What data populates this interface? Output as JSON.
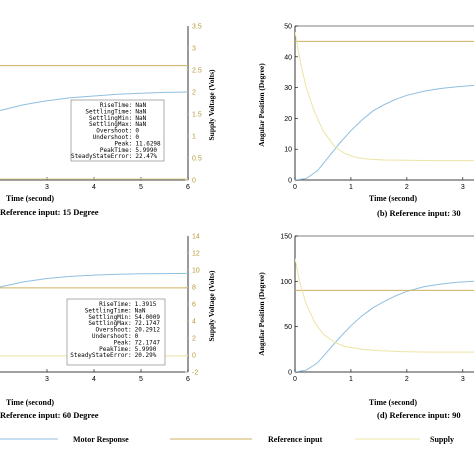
{
  "colors": {
    "motor": "#8fbfe0",
    "reference": "#cfb060",
    "supply": "#ece4a4",
    "axis": "#000000",
    "grid": "#dddddd"
  },
  "legend": {
    "items": [
      {
        "label": "Motor Response",
        "color": "#8fbfe0"
      },
      {
        "label": "Reference input",
        "color": "#cfb060"
      },
      {
        "label": "Supply",
        "color": "#ece4a4"
      }
    ]
  },
  "chart_data": [
    {
      "id": "a",
      "type": "line",
      "caption": "Reference input: 15 Degree",
      "xlabel": "Time (second)",
      "ylabel": "Supply Voltage (Volts)",
      "xlim": [
        2,
        6
      ],
      "ylim": [
        0,
        3.5
      ],
      "xticks": [
        3,
        4,
        5,
        6
      ],
      "yticks": [
        0,
        0.5,
        1,
        1.5,
        2,
        2.5,
        3,
        3.5
      ],
      "yticks_side": "right",
      "series": [
        {
          "name": "Motor Response",
          "x": [
            2,
            2.5,
            3,
            3.5,
            4,
            4.5,
            5,
            5.5,
            6
          ],
          "y": [
            1.58,
            1.71,
            1.8,
            1.87,
            1.91,
            1.95,
            1.97,
            1.99,
            2.0
          ]
        },
        {
          "name": "Reference input",
          "x": [
            2,
            6
          ],
          "y": [
            2.6,
            2.6
          ]
        },
        {
          "name": "Supply",
          "x": [
            2,
            6
          ],
          "y": [
            0.03,
            0.03
          ]
        }
      ],
      "stats": [
        {
          "key": "RiseTime",
          "value": "NaN"
        },
        {
          "key": "SettlingTime",
          "value": "NaN"
        },
        {
          "key": "SettlingMin",
          "value": "NaN"
        },
        {
          "key": "SettlingMax",
          "value": "NaN"
        },
        {
          "key": "Overshoot",
          "value": "0"
        },
        {
          "key": "Undershoot",
          "value": "0"
        },
        {
          "key": "Peak",
          "value": "11.6298"
        },
        {
          "key": "PeakTime",
          "value": "5.9990"
        },
        {
          "key": "SteadyStateError",
          "value": "22.47%"
        }
      ]
    },
    {
      "id": "b",
      "type": "line",
      "caption": "(b) Reference input: 30",
      "xlabel": "Time (second)",
      "ylabel": "Angular Position (Degree)",
      "xlim": [
        0,
        3.2
      ],
      "ylim": [
        0,
        50
      ],
      "xticks": [
        0,
        1,
        2,
        3
      ],
      "yticks": [
        0,
        10,
        20,
        30,
        40,
        50
      ],
      "yticks_side": "left",
      "series": [
        {
          "name": "Motor Response",
          "x": [
            0,
            0.2,
            0.4,
            0.6,
            0.8,
            1.0,
            1.2,
            1.4,
            1.6,
            1.8,
            2.0,
            2.3,
            2.6,
            2.9,
            3.2
          ],
          "y": [
            0,
            0.5,
            3,
            7.5,
            12,
            16,
            19.5,
            22.5,
            24.5,
            26.2,
            27.5,
            28.8,
            29.7,
            30.3,
            30.7
          ]
        },
        {
          "name": "Reference input",
          "x": [
            0,
            3.2
          ],
          "y": [
            45,
            45
          ]
        },
        {
          "name": "Supply",
          "x": [
            0,
            0.1,
            0.2,
            0.35,
            0.5,
            0.7,
            0.9,
            1.1,
            1.3,
            1.6,
            2.0,
            2.5,
            3.2
          ],
          "y": [
            48,
            38,
            30,
            22,
            16,
            11,
            8.5,
            7.3,
            6.8,
            6.5,
            6.4,
            6.3,
            6.3
          ]
        }
      ]
    },
    {
      "id": "c",
      "type": "line",
      "caption": "Reference input: 60 Degree",
      "xlabel": "Time (second)",
      "ylabel": "Supply Voltage (Volts)",
      "xlim": [
        2,
        6
      ],
      "ylim": [
        -2,
        14
      ],
      "xticks": [
        3,
        4,
        5,
        6
      ],
      "yticks": [
        -2,
        0,
        2,
        4,
        6,
        8,
        10,
        12,
        14
      ],
      "yticks_side": "right",
      "series": [
        {
          "name": "Motor Response",
          "x": [
            2,
            2.5,
            3,
            3.5,
            4,
            4.5,
            5,
            5.5,
            6
          ],
          "y": [
            8.0,
            8.6,
            9.0,
            9.25,
            9.4,
            9.5,
            9.55,
            9.58,
            9.6
          ]
        },
        {
          "name": "Reference input",
          "x": [
            2,
            6
          ],
          "y": [
            7.9,
            7.9
          ]
        },
        {
          "name": "Supply",
          "x": [
            2,
            6
          ],
          "y": [
            -0.1,
            -0.1
          ]
        }
      ],
      "stats": [
        {
          "key": "RiseTime",
          "value": "1.3915"
        },
        {
          "key": "SettlingTime",
          "value": "NaN"
        },
        {
          "key": "SettlingMin",
          "value": "54.0009"
        },
        {
          "key": "SettlingMax",
          "value": "72.1747"
        },
        {
          "key": "Overshoot",
          "value": "20.2912"
        },
        {
          "key": "Undershoot",
          "value": "0"
        },
        {
          "key": "Peak",
          "value": "72.1747"
        },
        {
          "key": "PeakTime",
          "value": "5.9990"
        },
        {
          "key": "SteadyStateError",
          "value": "20.29%"
        }
      ]
    },
    {
      "id": "d",
      "type": "line",
      "caption": "(d) Reference input: 90",
      "xlabel": "Time (second)",
      "ylabel": "Angular Position (Degree)",
      "xlim": [
        0,
        3.2
      ],
      "ylim": [
        0,
        150
      ],
      "xticks": [
        0,
        1,
        2,
        3
      ],
      "yticks": [
        0,
        50,
        100,
        150
      ],
      "yticks_side": "left",
      "series": [
        {
          "name": "Motor Response",
          "x": [
            0,
            0.2,
            0.4,
            0.6,
            0.8,
            1.0,
            1.2,
            1.4,
            1.6,
            1.8,
            2.0,
            2.3,
            2.6,
            2.9,
            3.2
          ],
          "y": [
            0,
            2,
            10,
            24,
            38,
            51,
            62,
            71,
            78,
            84,
            89,
            94,
            97,
            99,
            100
          ]
        },
        {
          "name": "Reference input",
          "x": [
            0,
            3.2
          ],
          "y": [
            90,
            90
          ]
        },
        {
          "name": "Supply",
          "x": [
            0,
            0.08,
            0.2,
            0.35,
            0.5,
            0.7,
            0.9,
            1.2,
            1.5,
            1.9,
            2.4,
            3.2
          ],
          "y": [
            125,
            100,
            75,
            55,
            42,
            33,
            28,
            25,
            23.5,
            22.5,
            22,
            22
          ]
        }
      ]
    }
  ]
}
